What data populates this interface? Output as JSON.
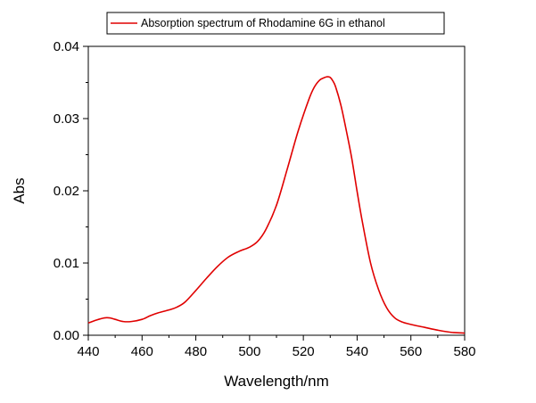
{
  "chart_data": {
    "type": "line",
    "xlabel": "Wavelength/nm",
    "ylabel": "Abs",
    "xlim": [
      440,
      580
    ],
    "ylim": [
      0.0,
      0.04
    ],
    "x_ticks": [
      440,
      460,
      480,
      500,
      520,
      540,
      560,
      580
    ],
    "x_tick_labels": [
      "440",
      "460",
      "480",
      "500",
      "520",
      "540",
      "560",
      "580"
    ],
    "y_ticks": [
      0.0,
      0.01,
      0.02,
      0.03,
      0.04
    ],
    "y_tick_labels": [
      "0.00",
      "0.01",
      "0.02",
      "0.03",
      "0.04"
    ],
    "legend_position": "top",
    "grid": false,
    "series": [
      {
        "name": "Absorption spectrum of Rhodamine 6G in ethanol",
        "color": "#e00000",
        "x": [
          440,
          443,
          446,
          448,
          450,
          453,
          456,
          460,
          463,
          466,
          470,
          473,
          476,
          480,
          484,
          488,
          492,
          496,
          500,
          503,
          506,
          510,
          514,
          518,
          522,
          524,
          526,
          528,
          529,
          530,
          531,
          532,
          534,
          536,
          538,
          540,
          542,
          545,
          548,
          551,
          554,
          557,
          560,
          565,
          570,
          575,
          580
        ],
        "y": [
          0.0017,
          0.0021,
          0.0024,
          0.0024,
          0.0022,
          0.0019,
          0.0019,
          0.0022,
          0.0027,
          0.0031,
          0.0035,
          0.0039,
          0.0046,
          0.0062,
          0.0079,
          0.0095,
          0.0108,
          0.0116,
          0.0122,
          0.013,
          0.0146,
          0.018,
          0.023,
          0.0282,
          0.0326,
          0.0343,
          0.0353,
          0.0357,
          0.0358,
          0.0357,
          0.0352,
          0.0344,
          0.0318,
          0.0283,
          0.0245,
          0.0199,
          0.0156,
          0.01,
          0.0063,
          0.0038,
          0.0024,
          0.0018,
          0.0015,
          0.0011,
          0.0007,
          0.0004,
          0.0003
        ]
      }
    ]
  }
}
